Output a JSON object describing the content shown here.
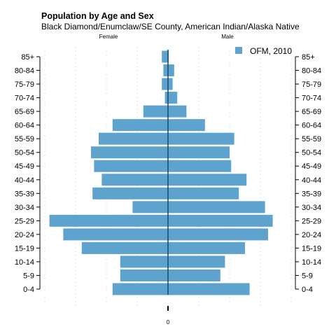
{
  "chart_data": {
    "type": "bar",
    "orientation": "horizontal-population-pyramid",
    "title": "Population by Age and Sex",
    "subtitle": "Black Diamond/Enumclaw/SE County, American Indian/Alaska Native",
    "side_labels": {
      "left": "Female",
      "right": "Male"
    },
    "x_center_label": "0",
    "categories": [
      "0-4",
      "5-9",
      "10-14",
      "15-19",
      "20-24",
      "25-29",
      "30-34",
      "35-39",
      "40-44",
      "45-49",
      "50-54",
      "55-59",
      "60-64",
      "65-69",
      "70-74",
      "75-79",
      "80-84",
      "85+"
    ],
    "series": [
      {
        "name": "OFM, 2010",
        "color": "#5ea2ce",
        "female": [
          36,
          31,
          31,
          56,
          68,
          77,
          23,
          49,
          43,
          48,
          50,
          45,
          36,
          16,
          2,
          4,
          3,
          4
        ],
        "male": [
          53,
          34,
          37,
          50,
          65,
          68,
          63,
          46,
          51,
          41,
          40,
          43,
          24,
          12,
          6,
          3,
          4,
          0.5
        ]
      }
    ],
    "xlim": [
      -80,
      80
    ],
    "legend_position": "top-right",
    "grid": true
  }
}
